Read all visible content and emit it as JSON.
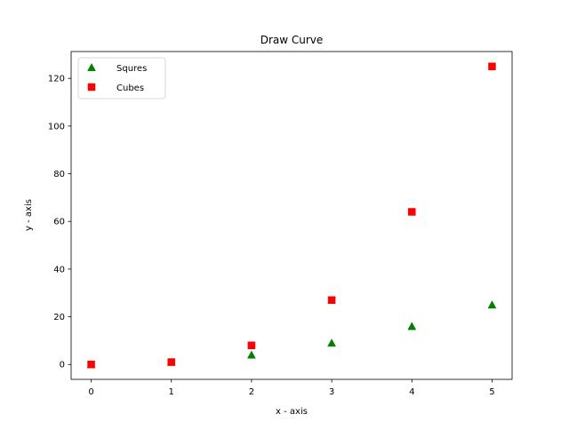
{
  "chart_data": {
    "type": "scatter",
    "title": "Draw Curve",
    "xlabel": "x - axis",
    "ylabel": "y - axis",
    "xlim": [
      -0.25,
      5.25
    ],
    "ylim": [
      -6.25,
      131.25
    ],
    "xticks": [
      0,
      1,
      2,
      3,
      4,
      5
    ],
    "xtick_labels": [
      "0",
      "1",
      "2",
      "3",
      "4",
      "5"
    ],
    "yticks": [
      0,
      20,
      40,
      60,
      80,
      100,
      120
    ],
    "ytick_labels": [
      "0",
      "20",
      "40",
      "60",
      "80",
      "100",
      "120"
    ],
    "grid": false,
    "legend_position": "top-left",
    "series": [
      {
        "name": "Squres",
        "marker": "triangle",
        "color": "#008000",
        "x": [
          0,
          1,
          2,
          3,
          4,
          5
        ],
        "y": [
          0,
          1,
          4,
          9,
          16,
          25
        ]
      },
      {
        "name": "Cubes",
        "marker": "square",
        "color": "#ff0000",
        "x": [
          0,
          1,
          2,
          3,
          4,
          5
        ],
        "y": [
          0,
          1,
          8,
          27,
          64,
          125
        ]
      }
    ]
  }
}
